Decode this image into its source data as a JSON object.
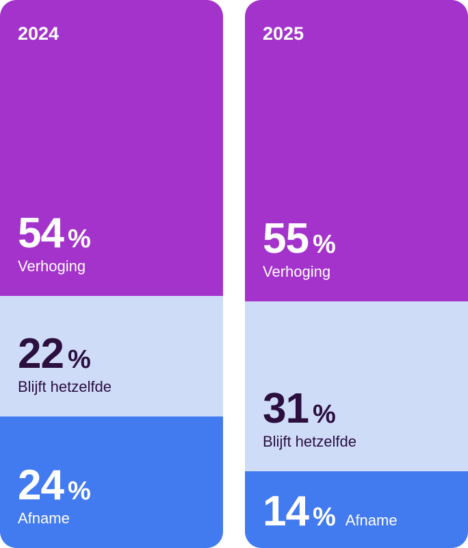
{
  "chart_data": {
    "type": "bar",
    "stacked": true,
    "orientation": "vertical",
    "unit": "%",
    "categories": [
      "2024",
      "2025"
    ],
    "series": [
      {
        "name": "Verhoging",
        "values": [
          54,
          55
        ],
        "color": "#a433cc"
      },
      {
        "name": "Blijft hetzelfde",
        "values": [
          22,
          31
        ],
        "color": "#cfdcf8"
      },
      {
        "name": "Afname",
        "values": [
          24,
          14
        ],
        "color": "#427aef"
      }
    ],
    "ylim": [
      0,
      100
    ]
  }
}
